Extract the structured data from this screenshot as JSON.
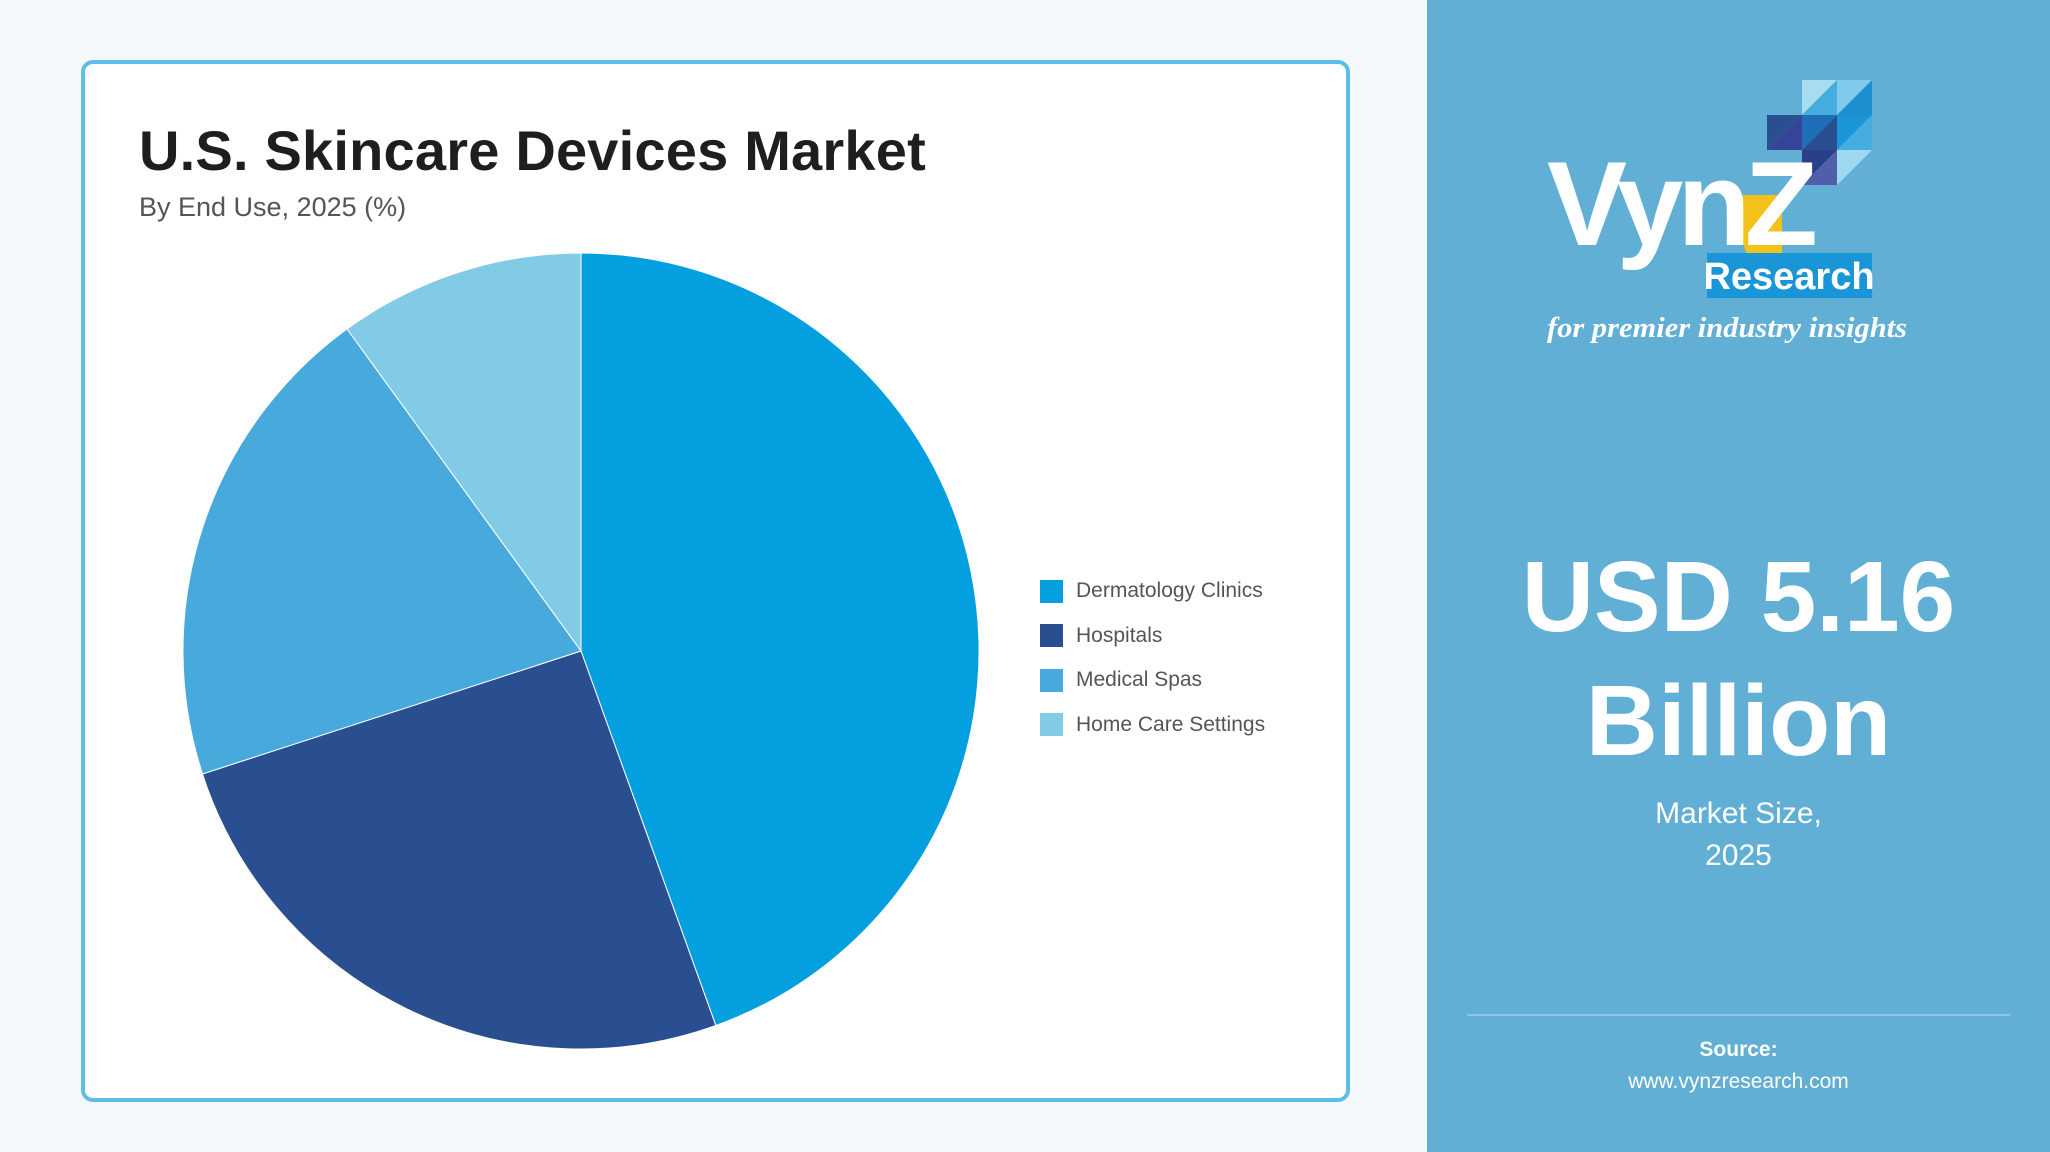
{
  "chart_data": {
    "type": "pie",
    "title": "U.S. Skincare Devices Market",
    "subtitle": "By End Use, 2025 (%)",
    "categories": [
      "Dermatology Clinics",
      "Hospitals",
      "Medical Spas",
      "Home Care Settings"
    ],
    "values": [
      44.5,
      25.5,
      20,
      10
    ],
    "colors": [
      "#049fdf",
      "#2a4f91",
      "#47a9dc",
      "#82cbe6"
    ],
    "legend_position": "right"
  },
  "side_panel": {
    "logo": {
      "brand": "VynZ",
      "badge": "Research",
      "tagline": "for premier industry insights"
    },
    "market_value_line1": "USD 5.16",
    "market_value_line2": "Billion",
    "market_label_line1": "Market Size,",
    "market_label_line2": "2025",
    "source_label": "Source:",
    "source_url": "www.vynzresearch.com"
  }
}
